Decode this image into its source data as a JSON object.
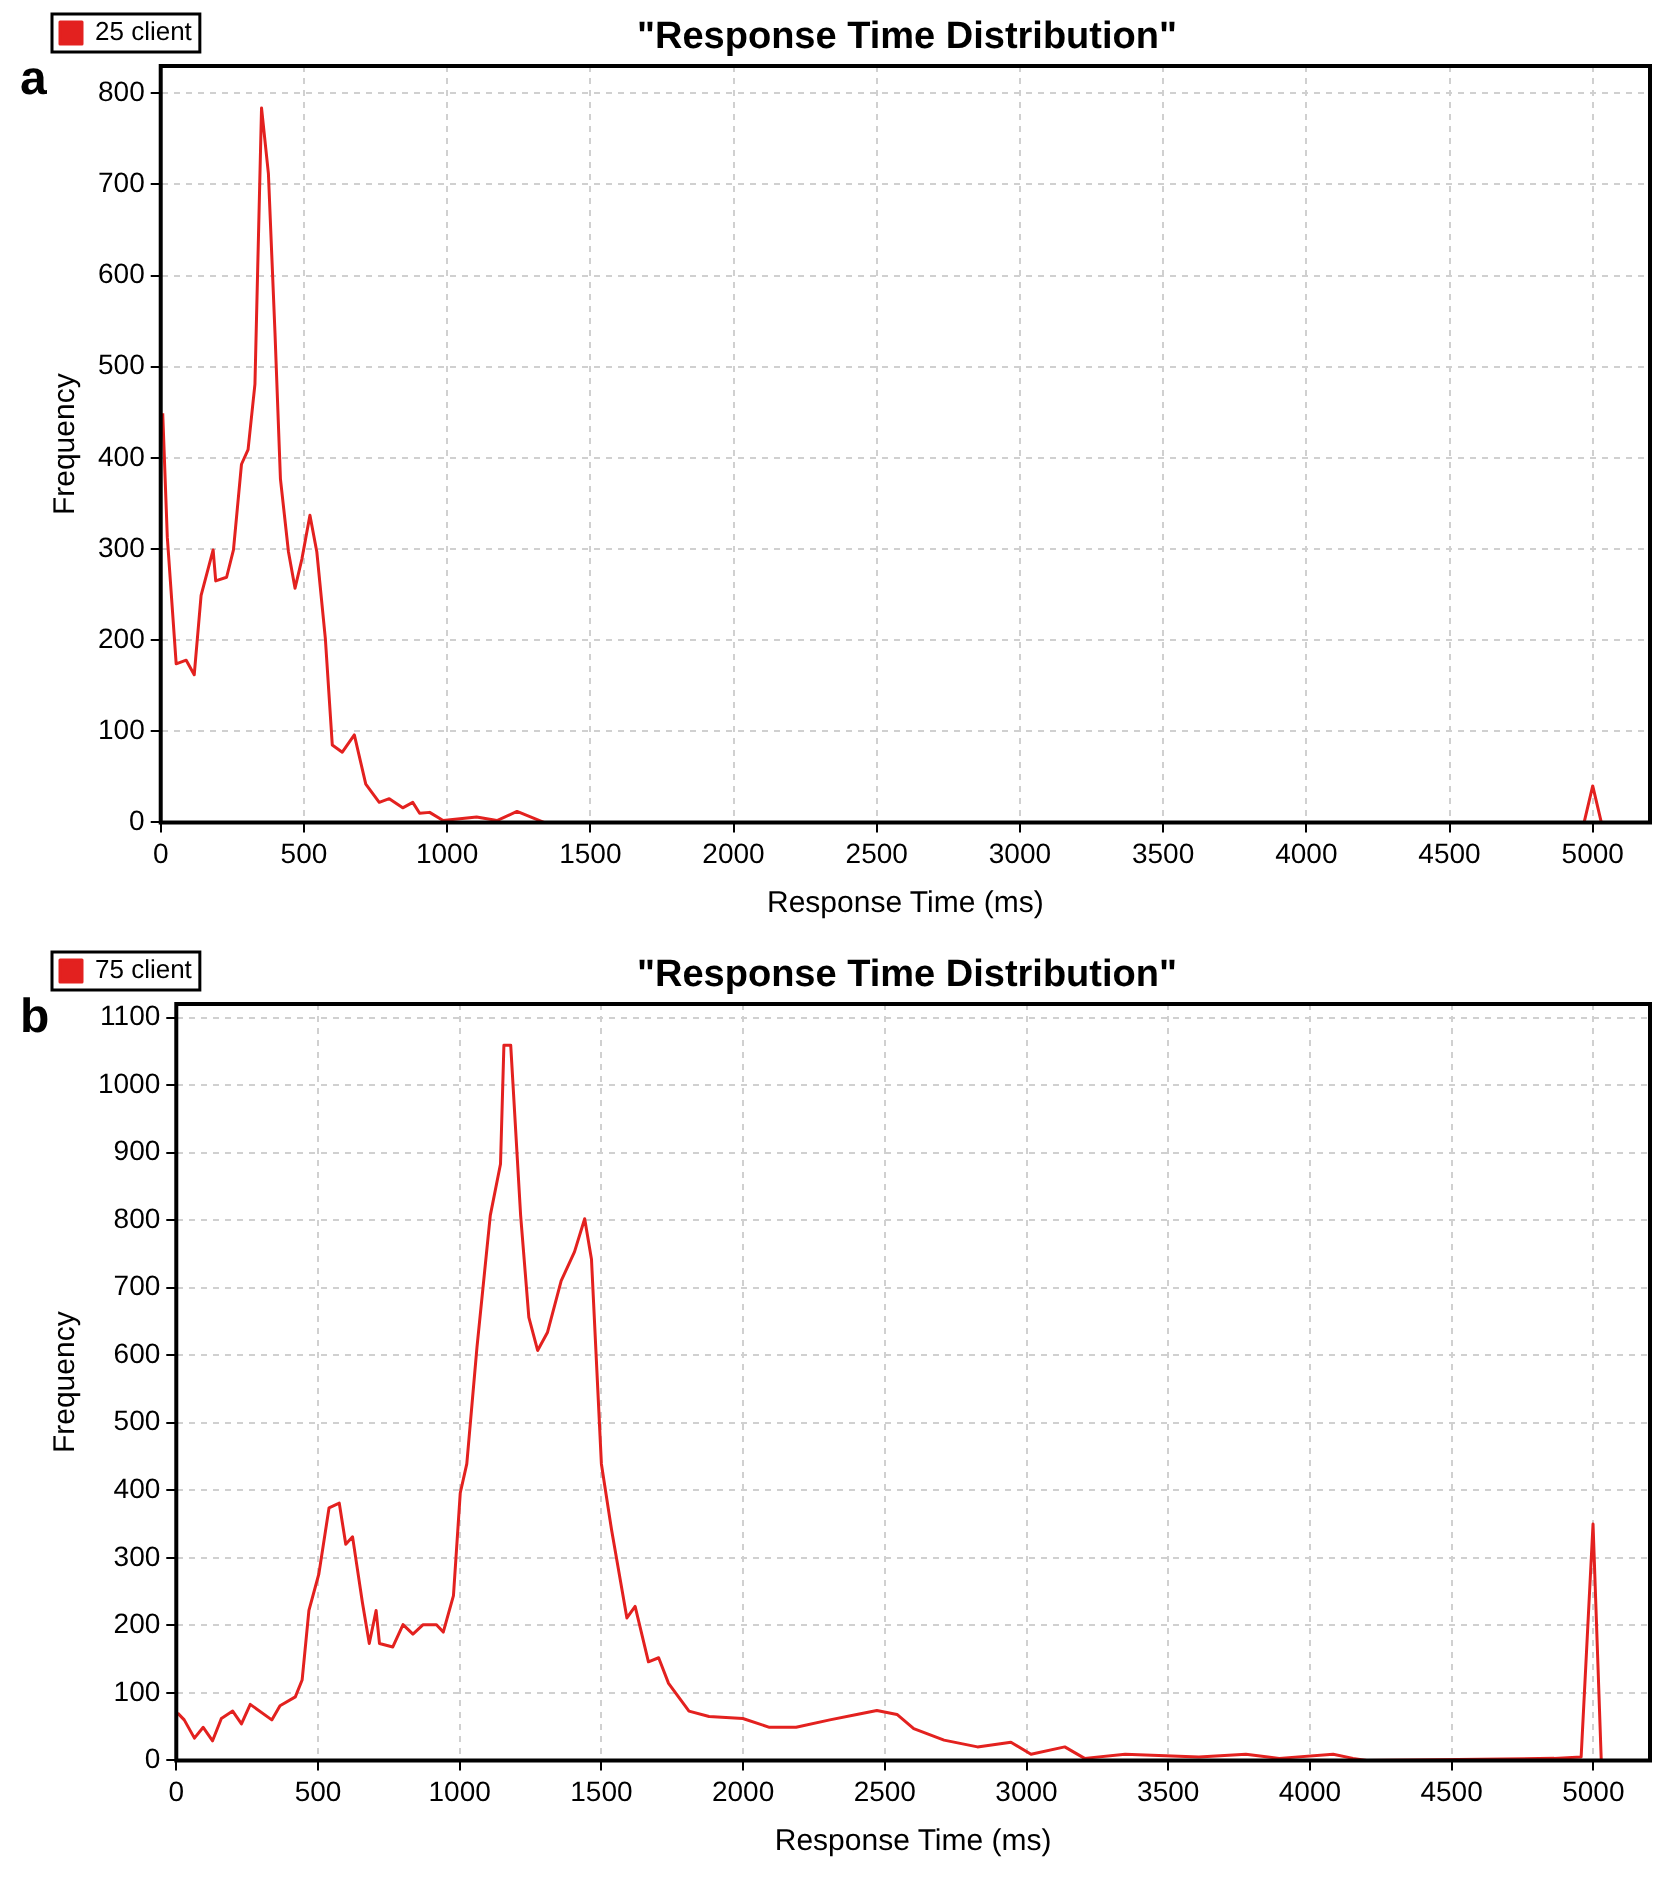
{
  "chart_data": [
    {
      "type": "line",
      "title": "\"Response Time Distribution\"",
      "xlabel": "Response Time (ms)",
      "ylabel": "Frequency",
      "annotations": [
        "a"
      ],
      "x": [
        7,
        23,
        54,
        89,
        117,
        141,
        183,
        192,
        230,
        254,
        282,
        305,
        329,
        352,
        376,
        399,
        418,
        446,
        469,
        493,
        521,
        545,
        575,
        599,
        634,
        676,
        716,
        763,
        798,
        845,
        880,
        904,
        939,
        986,
        1103,
        1174,
        1244,
        1291,
        1338,
        4970,
        5000,
        5030
      ],
      "series": [
        {
          "name": "25 client",
          "color": "#e3211f",
          "values": [
            449,
            313,
            174,
            178,
            162,
            249,
            299,
            265,
            269,
            299,
            393,
            409,
            481,
            784,
            712,
            537,
            377,
            297,
            257,
            289,
            337,
            297,
            201,
            85,
            77,
            96,
            42,
            22,
            26,
            16,
            22,
            10,
            11,
            2,
            6,
            2,
            12,
            6,
            0,
            0,
            40,
            0
          ]
        }
      ],
      "xlim": [
        0,
        5200
      ],
      "xticks": [
        0,
        500,
        1000,
        1500,
        2000,
        2500,
        3000,
        3500,
        4000,
        4500,
        5000
      ],
      "ylim": [
        0,
        830
      ],
      "yticks": [
        0,
        100,
        200,
        300,
        400,
        500,
        600,
        700,
        800
      ],
      "grid": true,
      "legend": "top left",
      "marker": "none",
      "line_style": "solid"
    },
    {
      "type": "line",
      "title": "\"Response Time Distribution\"",
      "xlabel": "Response Time (ms)",
      "ylabel": "Frequency",
      "annotations": [
        "b"
      ],
      "x": [
        5,
        28,
        64,
        95,
        128,
        159,
        199,
        230,
        261,
        337,
        366,
        420,
        444,
        468,
        503,
        539,
        575,
        598,
        622,
        657,
        681,
        705,
        717,
        764,
        800,
        835,
        871,
        918,
        942,
        978,
        1002,
        1025,
        1061,
        1108,
        1144,
        1156,
        1180,
        1215,
        1244,
        1275,
        1310,
        1358,
        1405,
        1441,
        1465,
        1500,
        1536,
        1590,
        1619,
        1666,
        1702,
        1737,
        1809,
        1880,
        1999,
        2093,
        2187,
        2306,
        2401,
        2472,
        2543,
        2602,
        2709,
        2827,
        2945,
        3016,
        3135,
        3205,
        3348,
        3608,
        3774,
        3892,
        4082,
        4152,
        4200,
        4862,
        4957,
        4999,
        5028
      ],
      "series": [
        {
          "name": "75 client",
          "color": "#e3211f",
          "values": [
            70,
            60,
            33,
            49,
            29,
            62,
            73,
            54,
            83,
            60,
            81,
            94,
            119,
            222,
            276,
            374,
            381,
            320,
            331,
            233,
            173,
            222,
            173,
            168,
            201,
            187,
            201,
            201,
            190,
            244,
            396,
            439,
            612,
            807,
            883,
            1059,
            1059,
            807,
            656,
            607,
            634,
            710,
            753,
            802,
            742,
            439,
            341,
            211,
            228,
            146,
            152,
            114,
            73,
            65,
            62,
            49,
            49,
            60,
            68,
            74,
            68,
            47,
            30,
            20,
            27,
            9,
            20,
            3,
            9,
            5,
            9,
            3,
            9,
            3,
            0,
            3,
            5,
            350,
            0
          ]
        }
      ],
      "xlim": [
        0,
        5200
      ],
      "xticks": [
        0,
        500,
        1000,
        1500,
        2000,
        2500,
        3000,
        3500,
        4000,
        4500,
        5000
      ],
      "ylim": [
        0,
        1120
      ],
      "yticks": [
        0,
        100,
        200,
        300,
        400,
        500,
        600,
        700,
        800,
        900,
        1000,
        1100
      ],
      "grid": true,
      "legend": "top left",
      "marker": "none",
      "line_style": "solid"
    }
  ]
}
